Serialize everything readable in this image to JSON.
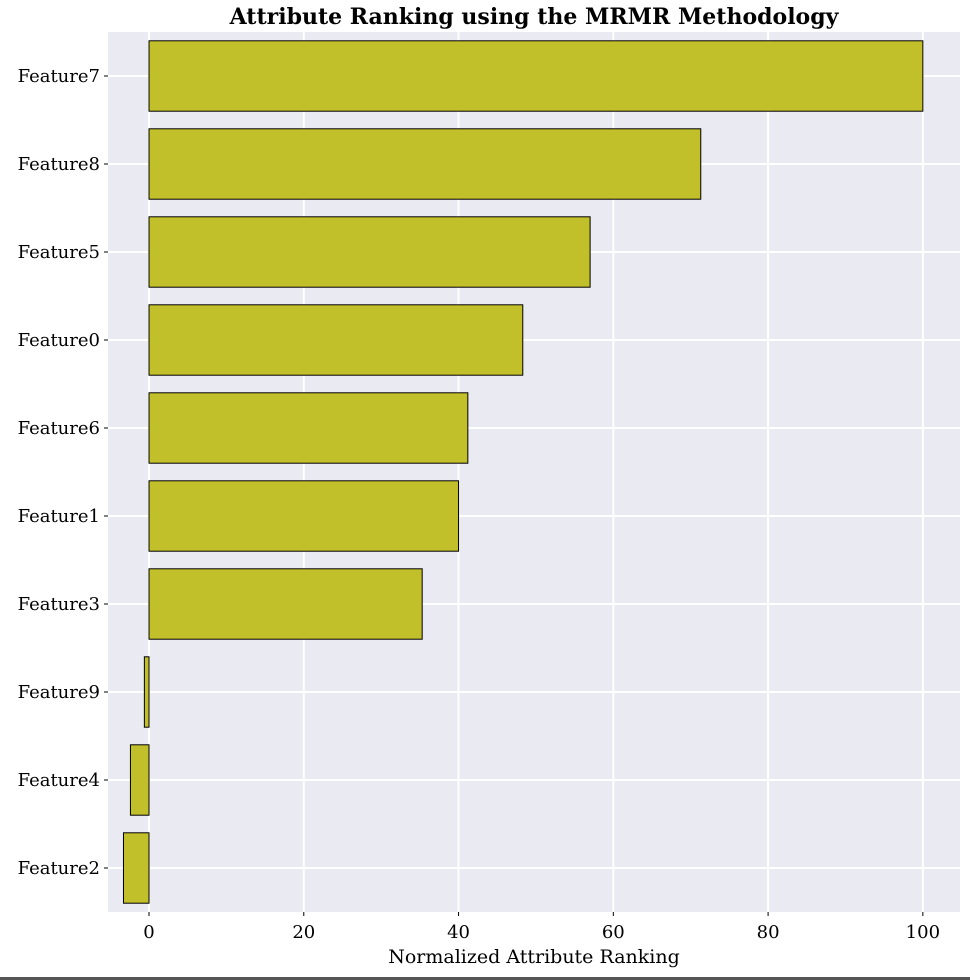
{
  "chart_data": {
    "type": "bar",
    "orientation": "horizontal",
    "title": "Attribute Ranking using the MRMR Methodology",
    "xlabel": "Normalized Attribute Ranking",
    "ylabel": "",
    "categories": [
      "Feature7",
      "Feature8",
      "Feature5",
      "Feature0",
      "Feature6",
      "Feature1",
      "Feature3",
      "Feature9",
      "Feature4",
      "Feature2"
    ],
    "values": [
      100,
      71.3,
      57.0,
      48.3,
      41.2,
      40.0,
      35.3,
      -0.6,
      -2.4,
      -3.3
    ],
    "xlim": [
      -5.3,
      104.8
    ],
    "xticks": [
      0,
      20,
      40,
      60,
      80,
      100
    ],
    "xtick_labels": [
      "0",
      "20",
      "40",
      "60",
      "80",
      "100"
    ],
    "grid": true,
    "legend": "none",
    "colors": {
      "bar": "#c2c02a",
      "plot_background": "#eaeaf2",
      "grid": "#ffffff",
      "bar_edge": "#000000"
    }
  }
}
